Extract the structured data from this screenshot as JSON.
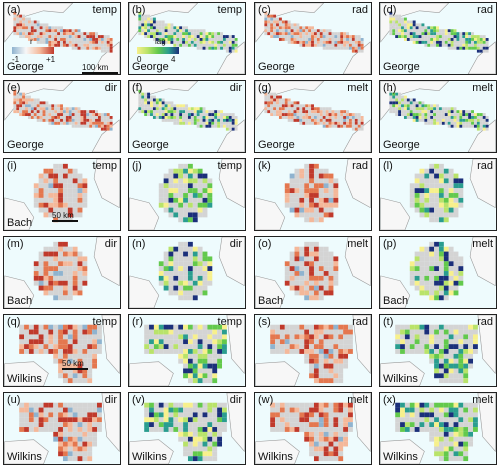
{
  "colors": {
    "background": "#eefbfd",
    "land": "#f7f7f7",
    "ice_gray": "#d4d4d4",
    "coast": "#9a9a9a",
    "corr_pos_light": "#f4b89a",
    "corr_pos": "#e4774f",
    "corr_pos_dark": "#c0392b",
    "corr_neg": "#8fb3cf",
    "lag_0": "#f7f08c",
    "lag_1": "#b9e36a",
    "lag_2": "#63c94c",
    "lag_3": "#2a9d8f",
    "lag_4": "#1b2f7a"
  },
  "legend_r": {
    "title": "r",
    "min_label": "-1",
    "max_label": "+1"
  },
  "legend_lag": {
    "title": "lag",
    "min_label": "0",
    "max_label": "4"
  },
  "scalebars": {
    "george": "100 km",
    "bach": "50 km",
    "wilkins": "50 km"
  },
  "panels": [
    {
      "label": "(a)",
      "var": "temp",
      "region": "George",
      "kind": "r"
    },
    {
      "label": "(b)",
      "var": "temp",
      "region": "George",
      "kind": "lag"
    },
    {
      "label": "(c)",
      "var": "rad",
      "region": "George",
      "kind": "r"
    },
    {
      "label": "(d)",
      "var": "rad",
      "region": "George",
      "kind": "lag"
    },
    {
      "label": "(e)",
      "var": "dir",
      "region": "George",
      "kind": "r"
    },
    {
      "label": "(f)",
      "var": "dir",
      "region": "George",
      "kind": "lag"
    },
    {
      "label": "(g)",
      "var": "melt",
      "region": "George",
      "kind": "r"
    },
    {
      "label": "(h)",
      "var": "melt",
      "region": "George",
      "kind": "lag"
    },
    {
      "label": "(i)",
      "var": "temp",
      "region": "Bach",
      "kind": "r"
    },
    {
      "label": "(j)",
      "var": "temp",
      "region": "",
      "kind": "lag"
    },
    {
      "label": "(k)",
      "var": "rad",
      "region": "",
      "kind": "r"
    },
    {
      "label": "(l)",
      "var": "rad",
      "region": "",
      "kind": "lag"
    },
    {
      "label": "(m)",
      "var": "dir",
      "region": "Bach",
      "kind": "r"
    },
    {
      "label": "(n)",
      "var": "dir",
      "region": "",
      "kind": "lag"
    },
    {
      "label": "(o)",
      "var": "melt",
      "region": "Bach",
      "kind": "r"
    },
    {
      "label": "(p)",
      "var": "melt",
      "region": "Bach",
      "kind": "lag"
    },
    {
      "label": "(q)",
      "var": "temp",
      "region": "Wilkins",
      "kind": "r"
    },
    {
      "label": "(r)",
      "var": "temp",
      "region": "",
      "kind": "lag"
    },
    {
      "label": "(s)",
      "var": "rad",
      "region": "",
      "kind": "r"
    },
    {
      "label": "(t)",
      "var": "rad",
      "region": "Wilkins",
      "kind": "lag"
    },
    {
      "label": "(u)",
      "var": "dir",
      "region": "Wilkins",
      "kind": "r"
    },
    {
      "label": "(v)",
      "var": "dir",
      "region": "Wilkins",
      "kind": "lag"
    },
    {
      "label": "(w)",
      "var": "melt",
      "region": "Wilkins",
      "kind": "r"
    },
    {
      "label": "(x)",
      "var": "melt",
      "region": "Wilkins",
      "kind": "lag"
    }
  ]
}
